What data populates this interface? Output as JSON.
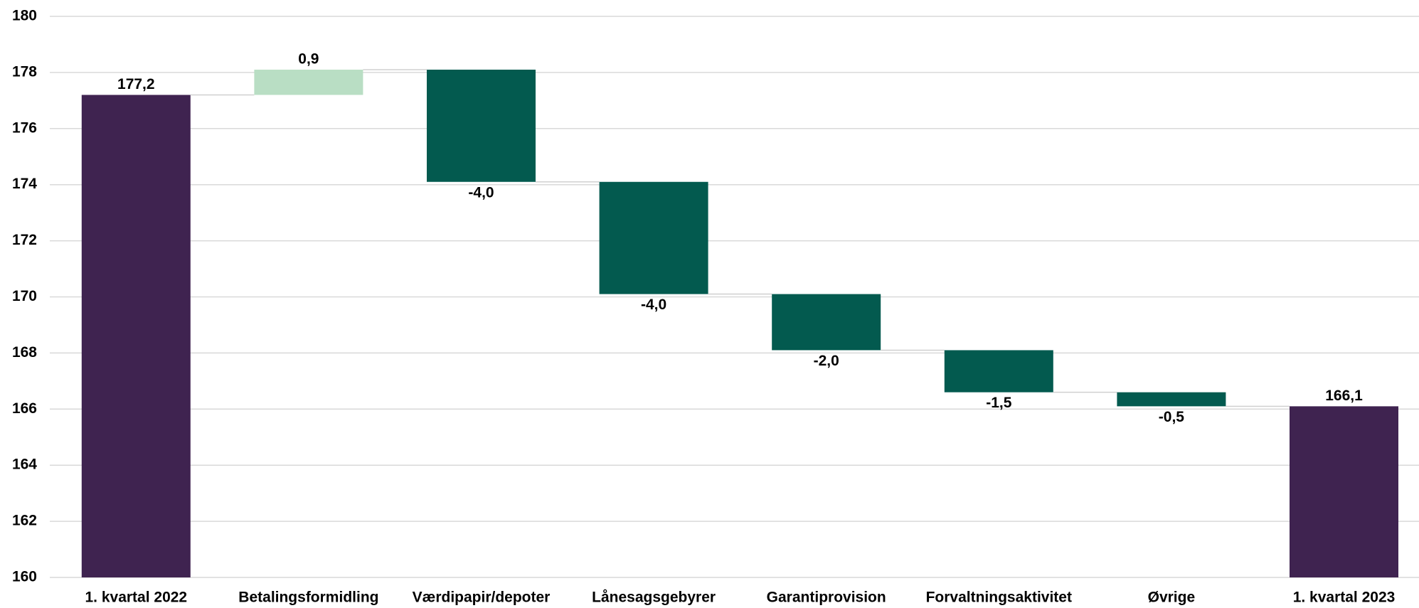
{
  "chart_data": {
    "type": "waterfall",
    "categories": [
      "1. kvartal 2022",
      "Betalingsformidling",
      "Værdipapir/depoter",
      "Lånesagsgebyrer",
      "Garantiprovision",
      "Forvaltningsaktivitet",
      "Øvrige",
      "1. kvartal 2023"
    ],
    "values": [
      177.2,
      0.9,
      -4.0,
      -4.0,
      -2.0,
      -1.5,
      -0.5,
      166.1
    ],
    "value_labels": [
      "177,2",
      "0,9",
      "-4,0",
      "-4,0",
      "-2,0",
      "-1,5",
      "-0,5",
      "166,1"
    ],
    "colors": [
      "#3f2350",
      "#b9dec4",
      "#035a4f",
      "#035a4f",
      "#035a4f",
      "#035a4f",
      "#035a4f",
      "#3f2350"
    ],
    "ylim": [
      160,
      180
    ],
    "yticks": [
      160,
      162,
      164,
      166,
      168,
      170,
      172,
      174,
      176,
      178,
      180
    ],
    "grid": true
  }
}
